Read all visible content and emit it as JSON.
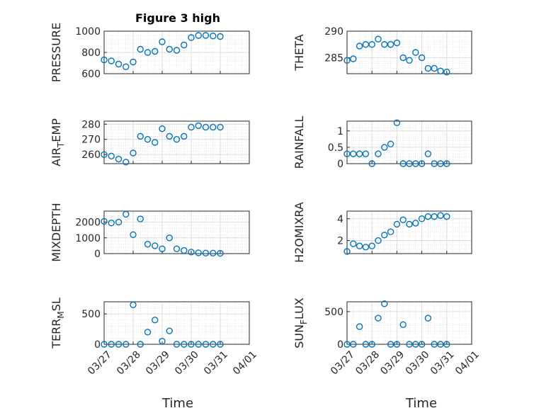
{
  "figure": {
    "title": "Figure 3 high",
    "xlabel": "Time",
    "date_ticks": [
      "03/27",
      "03/28",
      "03/29",
      "03/30",
      "03/31",
      "04/01"
    ]
  },
  "chart_data": [
    {
      "type": "scatter",
      "title": "Figure 3 high",
      "ylabel": "PRESSURE",
      "xlim": [
        "03/27",
        "04/01"
      ],
      "ylim": [
        600,
        1000
      ],
      "yticks": [
        600,
        800,
        1000
      ],
      "grid": true,
      "marker": "circle",
      "color": "#0072BD",
      "x": [
        "03/27 00:00",
        "03/27 06:00",
        "03/27 12:00",
        "03/27 18:00",
        "03/28 00:00",
        "03/28 06:00",
        "03/28 12:00",
        "03/28 18:00",
        "03/29 00:00",
        "03/29 06:00",
        "03/29 12:00",
        "03/29 18:00",
        "03/30 00:00",
        "03/30 06:00",
        "03/30 12:00",
        "03/30 18:00",
        "03/31 00:00"
      ],
      "y": [
        730,
        720,
        690,
        665,
        710,
        830,
        800,
        810,
        900,
        830,
        820,
        870,
        940,
        960,
        960,
        955,
        950
      ]
    },
    {
      "type": "scatter",
      "title": "",
      "ylabel": "THETA",
      "xlim": [
        "03/27",
        "04/01"
      ],
      "ylim": [
        282,
        290
      ],
      "yticks": [
        285,
        290
      ],
      "grid": true,
      "marker": "circle",
      "color": "#0072BD",
      "x": [
        "03/27 00:00",
        "03/27 06:00",
        "03/27 12:00",
        "03/27 18:00",
        "03/28 00:00",
        "03/28 06:00",
        "03/28 12:00",
        "03/28 18:00",
        "03/29 00:00",
        "03/29 06:00",
        "03/29 12:00",
        "03/29 18:00",
        "03/30 00:00",
        "03/30 06:00",
        "03/30 12:00",
        "03/30 18:00",
        "03/31 00:00"
      ],
      "y": [
        284.5,
        284.8,
        287.2,
        287.5,
        287.5,
        288.5,
        287.5,
        287.5,
        287.8,
        285.0,
        284.5,
        286.0,
        285.0,
        283.0,
        283.0,
        282.5,
        282.3
      ]
    },
    {
      "type": "scatter",
      "title": "",
      "ylabel_main": "AIR",
      "ylabel_sub": "T",
      "ylabel_rest": "EMP",
      "xlim": [
        "03/27",
        "04/01"
      ],
      "ylim": [
        254,
        282
      ],
      "yticks": [
        260,
        270,
        280
      ],
      "grid": true,
      "marker": "circle",
      "color": "#0072BD",
      "x": [
        "03/27 00:00",
        "03/27 06:00",
        "03/27 12:00",
        "03/27 18:00",
        "03/28 00:00",
        "03/28 06:00",
        "03/28 12:00",
        "03/28 18:00",
        "03/29 00:00",
        "03/29 06:00",
        "03/29 12:00",
        "03/29 18:00",
        "03/30 00:00",
        "03/30 06:00",
        "03/30 12:00",
        "03/30 18:00",
        "03/31 00:00"
      ],
      "y": [
        260,
        259,
        257,
        255,
        261,
        272,
        270,
        268,
        277,
        272,
        270,
        272,
        278,
        279,
        278,
        278,
        278
      ]
    },
    {
      "type": "scatter",
      "title": "",
      "ylabel": "RAINFALL",
      "xlim": [
        "03/27",
        "04/01"
      ],
      "ylim": [
        0,
        1.3
      ],
      "yticks": [
        0,
        0.5,
        1
      ],
      "grid": true,
      "marker": "circle",
      "color": "#0072BD",
      "x": [
        "03/27 00:00",
        "03/27 06:00",
        "03/27 12:00",
        "03/27 18:00",
        "03/28 00:00",
        "03/28 06:00",
        "03/28 12:00",
        "03/28 18:00",
        "03/29 00:00",
        "03/29 06:00",
        "03/29 12:00",
        "03/29 18:00",
        "03/30 00:00",
        "03/30 06:00",
        "03/30 12:00",
        "03/30 18:00",
        "03/31 00:00"
      ],
      "y": [
        0.3,
        0.3,
        0.3,
        0.3,
        0,
        0.3,
        0.5,
        0.6,
        1.25,
        0,
        0,
        0,
        0,
        0.3,
        0,
        0,
        0
      ]
    },
    {
      "type": "scatter",
      "title": "",
      "ylabel": "MIXDEPTH",
      "xlim": [
        "03/27",
        "04/01"
      ],
      "ylim": [
        0,
        2700
      ],
      "yticks": [
        0,
        1000,
        2000
      ],
      "grid": true,
      "marker": "circle",
      "color": "#0072BD",
      "x": [
        "03/27 00:00",
        "03/27 06:00",
        "03/27 12:00",
        "03/27 18:00",
        "03/28 00:00",
        "03/28 06:00",
        "03/28 12:00",
        "03/28 18:00",
        "03/29 00:00",
        "03/29 06:00",
        "03/29 12:00",
        "03/29 18:00",
        "03/30 00:00",
        "03/30 06:00",
        "03/30 12:00",
        "03/30 18:00",
        "03/31 00:00"
      ],
      "y": [
        2050,
        1950,
        2000,
        2500,
        1200,
        2200,
        600,
        500,
        300,
        1000,
        300,
        200,
        100,
        50,
        30,
        30,
        20
      ]
    },
    {
      "type": "scatter",
      "title": "",
      "ylabel": "H2OMIXRA",
      "xlim": [
        "03/27",
        "04/01"
      ],
      "ylim": [
        0.8,
        4.7
      ],
      "yticks": [
        2,
        4
      ],
      "grid": true,
      "marker": "circle",
      "color": "#0072BD",
      "x": [
        "03/27 00:00",
        "03/27 06:00",
        "03/27 12:00",
        "03/27 18:00",
        "03/28 00:00",
        "03/28 06:00",
        "03/28 12:00",
        "03/28 18:00",
        "03/29 00:00",
        "03/29 06:00",
        "03/29 12:00",
        "03/29 18:00",
        "03/30 00:00",
        "03/30 06:00",
        "03/30 12:00",
        "03/30 18:00",
        "03/31 00:00"
      ],
      "y": [
        1.0,
        1.7,
        1.5,
        1.4,
        1.5,
        2.0,
        2.5,
        2.8,
        3.5,
        3.9,
        3.5,
        3.6,
        4.0,
        4.2,
        4.2,
        4.3,
        4.2
      ]
    },
    {
      "type": "scatter",
      "title": "",
      "ylabel_main": "TERR",
      "ylabel_sub": "M",
      "ylabel_rest": "SL",
      "xlim": [
        "03/27",
        "04/01"
      ],
      "ylim": [
        0,
        700
      ],
      "yticks": [
        0,
        500
      ],
      "grid": true,
      "marker": "circle",
      "color": "#0072BD",
      "x": [
        "03/27 00:00",
        "03/27 06:00",
        "03/27 12:00",
        "03/27 18:00",
        "03/28 00:00",
        "03/28 06:00",
        "03/28 12:00",
        "03/28 18:00",
        "03/29 00:00",
        "03/29 06:00",
        "03/29 12:00",
        "03/29 18:00",
        "03/30 00:00",
        "03/30 06:00",
        "03/30 12:00",
        "03/30 18:00",
        "03/31 00:00"
      ],
      "y": [
        0,
        0,
        0,
        0,
        650,
        0,
        200,
        400,
        50,
        220,
        0,
        0,
        0,
        0,
        0,
        0,
        0
      ]
    },
    {
      "type": "scatter",
      "title": "",
      "ylabel_main": "SUN",
      "ylabel_sub": "F",
      "ylabel_rest": "LUX",
      "xlim": [
        "03/27",
        "04/01"
      ],
      "ylim": [
        0,
        650
      ],
      "yticks": [
        0,
        500
      ],
      "grid": true,
      "marker": "circle",
      "color": "#0072BD",
      "x": [
        "03/27 00:00",
        "03/27 06:00",
        "03/27 12:00",
        "03/27 18:00",
        "03/28 00:00",
        "03/28 06:00",
        "03/28 12:00",
        "03/28 18:00",
        "03/29 00:00",
        "03/29 06:00",
        "03/29 12:00",
        "03/29 18:00",
        "03/30 00:00",
        "03/30 06:00",
        "03/30 12:00",
        "03/30 18:00",
        "03/31 00:00"
      ],
      "y": [
        0,
        0,
        270,
        0,
        0,
        400,
        620,
        0,
        0,
        300,
        0,
        0,
        0,
        400,
        0,
        0,
        0
      ]
    }
  ]
}
